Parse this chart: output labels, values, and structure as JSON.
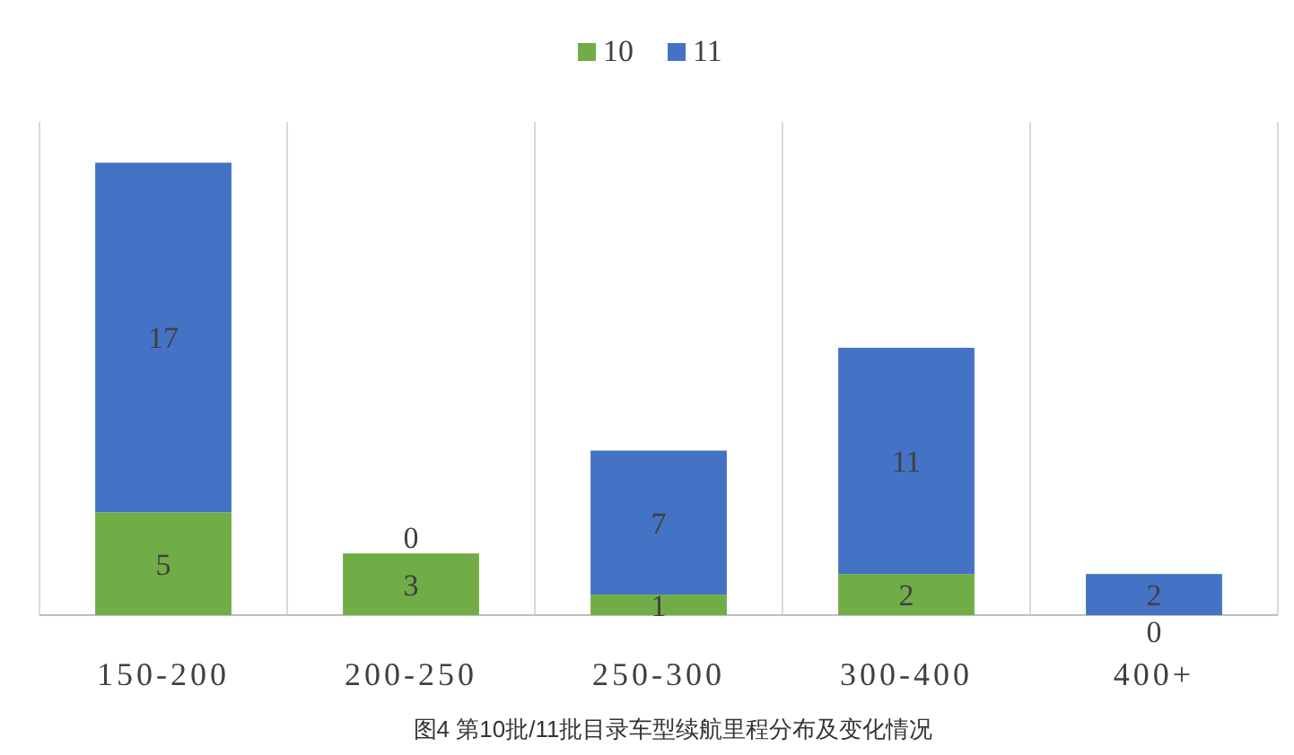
{
  "chart_data": {
    "type": "bar",
    "stacked": true,
    "categories": [
      "150-200",
      "200-250",
      "250-300",
      "300-400",
      "400+"
    ],
    "series": [
      {
        "name": "10",
        "color": "#70ad47",
        "values": [
          5,
          3,
          1,
          2,
          0
        ]
      },
      {
        "name": "11",
        "color": "#4472c4",
        "values": [
          17,
          0,
          7,
          11,
          2
        ]
      }
    ],
    "data_labels": true,
    "legend": "top",
    "grid": "x",
    "annotations": [
      "图4 第10批/11批目录车型续航里程分布及变化情况"
    ]
  }
}
